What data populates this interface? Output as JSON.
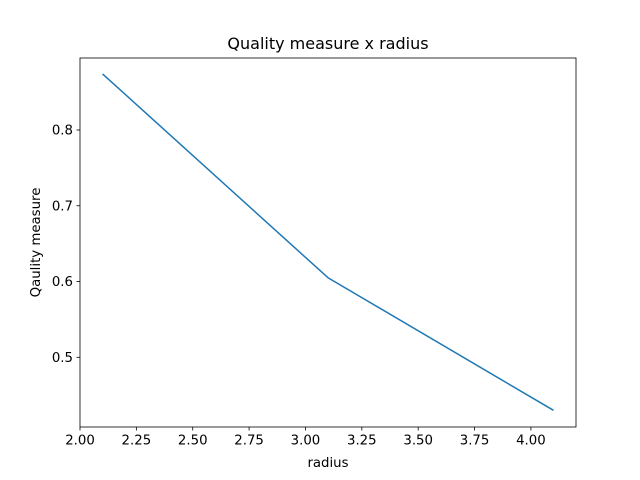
{
  "chart_data": {
    "type": "line",
    "title": "Quality measure x radius",
    "xlabel": "radius",
    "ylabel": "Qaulity measure",
    "xlim": [
      2.0,
      4.2
    ],
    "ylim": [
      0.408,
      0.895
    ],
    "xticks": [
      2.0,
      2.25,
      2.5,
      2.75,
      3.0,
      3.25,
      3.5,
      3.75,
      4.0
    ],
    "xtick_labels": [
      "2.00",
      "2.25",
      "2.50",
      "2.75",
      "3.00",
      "3.25",
      "3.50",
      "3.75",
      "4.00"
    ],
    "yticks": [
      0.5,
      0.6,
      0.7,
      0.8
    ],
    "ytick_labels": [
      "0.5",
      "0.6",
      "0.7",
      "0.8"
    ],
    "grid": false,
    "series": [
      {
        "color": "#1f77b4",
        "x": [
          2.1,
          3.1,
          4.1
        ],
        "y": [
          0.874,
          0.605,
          0.43
        ]
      }
    ]
  }
}
